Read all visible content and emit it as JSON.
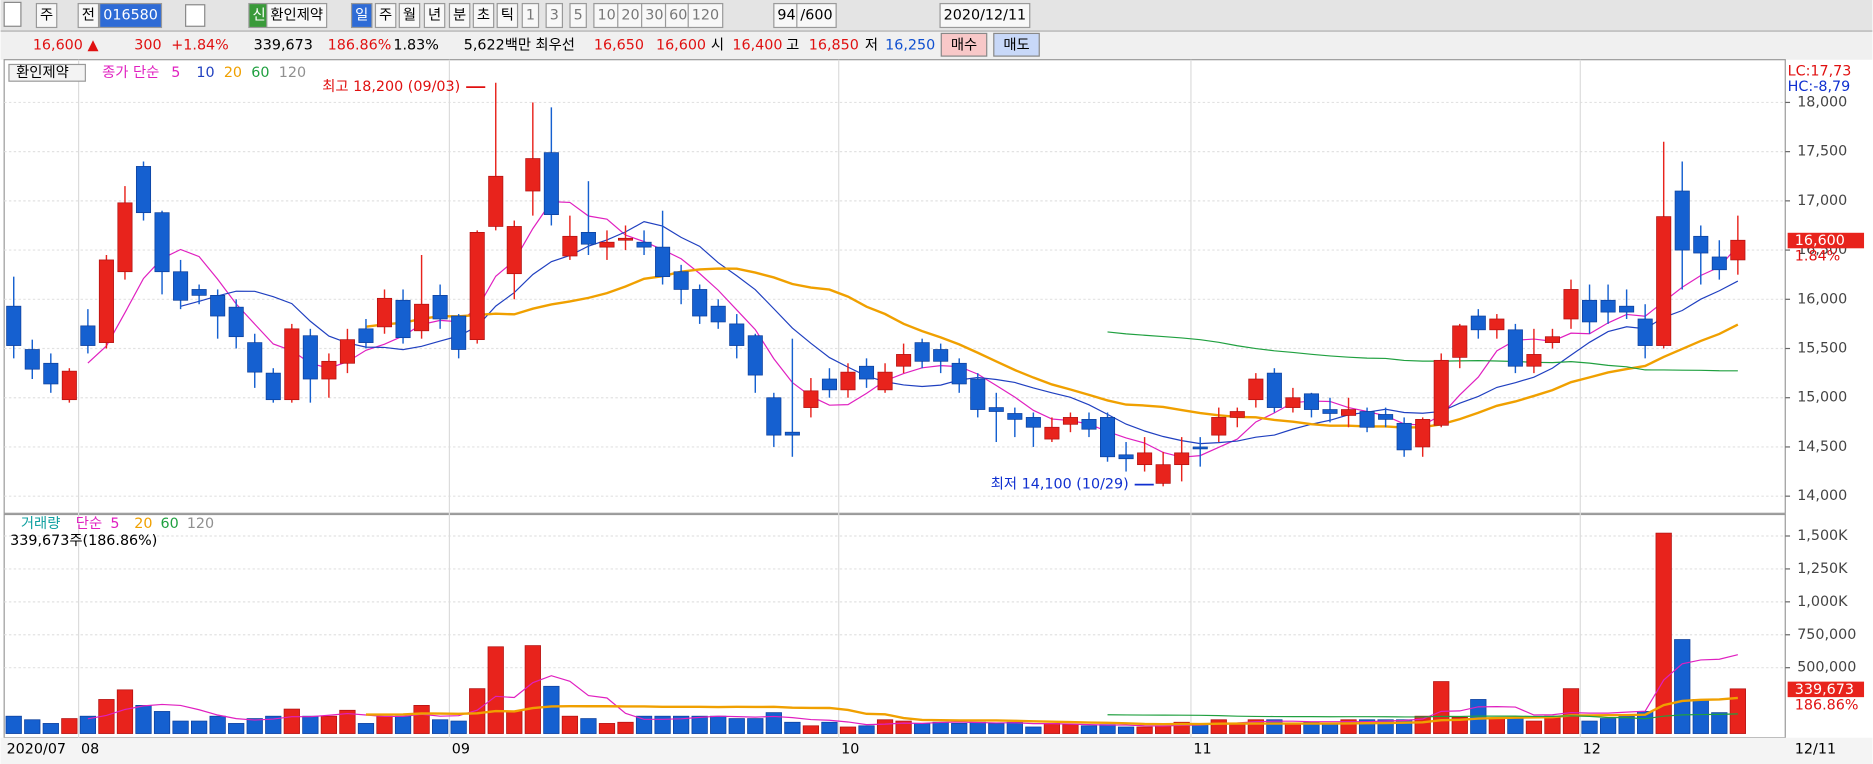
{
  "toolbar": [
    "주",
    "전",
    "016580",
    "신",
    "환인제약",
    "일",
    "주",
    "월",
    "년",
    "분",
    "초",
    "틱",
    "1",
    "3",
    "5",
    "10",
    "20",
    "30",
    "60",
    "120",
    "94",
    "/600",
    "2020/12/11"
  ],
  "quote": [
    {
      "text": "16,600 ▲",
      "color": "#e01010"
    },
    {
      "text": "300",
      "color": "#e01010"
    },
    {
      "text": "+1.84%",
      "color": "#e01010"
    },
    {
      "text": "339,673",
      "color": "#000000"
    },
    {
      "text": "186.86%",
      "color": "#e01010"
    },
    {
      "text": "1.83%",
      "color": "#000000"
    },
    {
      "text": "5,622백만",
      "color": "#000000"
    },
    {
      "text": "최우선",
      "color": "#000000"
    },
    {
      "text": "16,650",
      "color": "#e01010"
    },
    {
      "text": "16,600",
      "color": "#e01010"
    },
    {
      "text": "시",
      "color": "#000000"
    },
    {
      "text": "16,400",
      "color": "#e01010"
    },
    {
      "text": "고",
      "color": "#000000"
    },
    {
      "text": "16,850",
      "color": "#e01010"
    },
    {
      "text": "저",
      "color": "#000000"
    },
    {
      "text": "16,250",
      "color": "#1050d0"
    },
    {
      "text": "매수",
      "color": "#000000"
    },
    {
      "text": "매도",
      "color": "#000000"
    }
  ],
  "chart_data": {
    "type": "candlestick",
    "name": "환인제약",
    "ma_label": "종가 단순",
    "ma": [
      {
        "name": "5",
        "color": "#e020c0"
      },
      {
        "name": "10",
        "color": "#2040c0"
      },
      {
        "name": "20",
        "color": "#f0a000"
      },
      {
        "name": "60",
        "color": "#20a040"
      },
      {
        "name": "120",
        "color": "#909090"
      }
    ],
    "up_color": "#e8231c",
    "down_color": "#1560d0",
    "categories": [
      "2020/07",
      null,
      null,
      null,
      "08",
      null,
      null,
      null,
      null,
      null,
      null,
      null,
      null,
      null,
      null,
      null,
      null,
      null,
      null,
      null,
      null,
      null,
      null,
      null,
      "09",
      null,
      null,
      null,
      null,
      null,
      null,
      null,
      null,
      null,
      null,
      null,
      null,
      null,
      null,
      null,
      null,
      null,
      null,
      null,
      null,
      "10",
      null,
      null,
      null,
      null,
      null,
      null,
      null,
      null,
      null,
      null,
      null,
      null,
      null,
      null,
      null,
      null,
      null,
      null,
      "11",
      null,
      null,
      null,
      null,
      null,
      null,
      null,
      null,
      null,
      null,
      null,
      null,
      null,
      null,
      null,
      null,
      null,
      null,
      null,
      null,
      "12",
      null,
      null,
      null,
      null,
      null,
      null,
      null,
      "12/11"
    ],
    "open": [
      15930,
      15490,
      15350,
      14980,
      15730,
      15560,
      16280,
      17350,
      16880,
      16280,
      16100,
      16040,
      15920,
      15560,
      15250,
      14980,
      15630,
      15190,
      15350,
      15700,
      15720,
      15990,
      15680,
      16040,
      15830,
      15590,
      16740,
      16260,
      17100,
      17490,
      16440,
      16680,
      16530,
      16600,
      16580,
      16530,
      16280,
      16100,
      15930,
      15750,
      15630,
      15000,
      14650,
      14900,
      15190,
      15080,
      15320,
      15080,
      15320,
      15560,
      15490,
      15350,
      15190,
      14900,
      14840,
      14800,
      14580,
      14730,
      14780,
      14800,
      14420,
      14320,
      14130,
      14320,
      14500,
      14620,
      14800,
      14980,
      15250,
      14900,
      15040,
      14880,
      14820,
      14860,
      14830,
      14740,
      14500,
      14720,
      15410,
      15830,
      15690,
      15690,
      15320,
      15560,
      15800,
      15990,
      15990,
      15930,
      15800,
      15530,
      17100,
      16640,
      16430,
      16400
    ],
    "high": [
      16230,
      15590,
      15450,
      15300,
      15900,
      16450,
      17150,
      17400,
      16900,
      16400,
      16150,
      16100,
      16000,
      15650,
      15300,
      15750,
      15700,
      15450,
      15700,
      15800,
      16100,
      16100,
      16450,
      16150,
      15850,
      16700,
      18200,
      16800,
      18000,
      17950,
      16850,
      17200,
      16700,
      16750,
      16700,
      16900,
      16350,
      16150,
      16000,
      15850,
      15650,
      15050,
      15600,
      15200,
      15300,
      15350,
      15400,
      15350,
      15550,
      15600,
      15550,
      15400,
      15250,
      15050,
      14900,
      14850,
      14800,
      14850,
      14850,
      14850,
      14550,
      14600,
      14450,
      14600,
      14600,
      14900,
      14900,
      15250,
      15300,
      15100,
      15050,
      15000,
      15000,
      14900,
      14900,
      14800,
      14800,
      15450,
      15750,
      15900,
      15850,
      15750,
      15700,
      15700,
      16200,
      16150,
      16150,
      16100,
      15950,
      17600,
      17400,
      16750,
      16600,
      16850
    ],
    "low": [
      15400,
      15190,
      15050,
      14950,
      15450,
      15500,
      16200,
      16800,
      16050,
      15900,
      15950,
      15600,
      15500,
      15100,
      14950,
      14950,
      14950,
      15000,
      15250,
      15500,
      15650,
      15550,
      15600,
      15700,
      15400,
      15550,
      16700,
      16000,
      16850,
      16750,
      16400,
      16450,
      16400,
      16500,
      16450,
      16150,
      15950,
      15750,
      15700,
      15400,
      15050,
      14500,
      14400,
      14800,
      15000,
      15000,
      15100,
      15050,
      15250,
      15300,
      15250,
      15050,
      14800,
      14550,
      14600,
      14500,
      14550,
      14650,
      14600,
      14350,
      14250,
      14250,
      14100,
      14150,
      14300,
      14550,
      14700,
      14900,
      14850,
      14850,
      14800,
      14750,
      14700,
      14650,
      14700,
      14400,
      14400,
      14700,
      15300,
      15600,
      15600,
      15250,
      15250,
      15500,
      15700,
      15650,
      15750,
      15800,
      15400,
      15500,
      16100,
      16150,
      16200,
      16250
    ],
    "close": [
      15530,
      15290,
      15140,
      15270,
      15530,
      16400,
      16980,
      16880,
      16280,
      15990,
      16040,
      15830,
      15620,
      15260,
      14980,
      15700,
      15190,
      15370,
      15590,
      15560,
      16010,
      15610,
      15950,
      15800,
      15490,
      16680,
      17250,
      16740,
      17430,
      16860,
      16640,
      16560,
      16580,
      16620,
      16530,
      16230,
      16100,
      15830,
      15770,
      15530,
      15230,
      14620,
      14620,
      15070,
      15080,
      15260,
      15190,
      15260,
      15440,
      15370,
      15370,
      15140,
      14880,
      14860,
      14780,
      14700,
      14700,
      14800,
      14680,
      14400,
      14380,
      14440,
      14320,
      14440,
      14480,
      14800,
      14860,
      15190,
      14900,
      15000,
      14880,
      14840,
      14880,
      14700,
      14780,
      14470,
      14780,
      15380,
      15730,
      15690,
      15800,
      15320,
      15440,
      15620,
      16100,
      15770,
      15870,
      15870,
      15530,
      16840,
      16500,
      16470,
      16300,
      16600
    ],
    "ylim": [
      13850,
      18410
    ],
    "yticks": [
      {
        "value": 14000,
        "label": "14,000"
      },
      {
        "value": 14500,
        "label": "14,500"
      },
      {
        "value": 15000,
        "label": "15,000"
      },
      {
        "value": 15500,
        "label": "15,500"
      },
      {
        "value": 16000,
        "label": "16,000"
      },
      {
        "value": 16500,
        "label": "16,500"
      },
      {
        "value": 17000,
        "label": "17,000"
      },
      {
        "value": 17500,
        "label": "17,500"
      },
      {
        "value": 18000,
        "label": "18,000"
      }
    ],
    "high_note": "최고 18,200 (09/03)",
    "low_note": "최저 14,100 (10/29)",
    "right_notes": [
      "LC:17,73",
      "HC:-8,79"
    ],
    "last_price": "16,600",
    "last_change": "1.84%",
    "volume": [
      132000,
      105000,
      77000,
      114000,
      132000,
      259000,
      332000,
      214000,
      168000,
      95000,
      95000,
      132000,
      77000,
      114000,
      132000,
      186000,
      132000,
      132000,
      177000,
      77000,
      132000,
      132000,
      214000,
      105000,
      95000,
      341000,
      659000,
      168000,
      668000,
      359000,
      132000,
      114000,
      77000,
      86000,
      132000,
      132000,
      132000,
      132000,
      132000,
      114000,
      114000,
      159000,
      86000,
      59000,
      86000,
      50000,
      59000,
      105000,
      95000,
      77000,
      86000,
      77000,
      86000,
      77000,
      86000,
      50000,
      77000,
      68000,
      59000,
      68000,
      50000,
      50000,
      59000,
      86000,
      77000,
      105000,
      77000,
      105000,
      105000,
      77000,
      86000,
      77000,
      105000,
      105000,
      105000,
      105000,
      132000,
      395000,
      123000,
      259000,
      114000,
      114000,
      95000,
      132000,
      341000,
      95000,
      114000,
      132000,
      168000,
      1522000,
      714000,
      259000,
      159000,
      339673
    ],
    "volume_label": "거래량",
    "volume_ma_label": "단순",
    "volume_ma": [
      {
        "name": "5",
        "color": "#e020c0"
      },
      {
        "name": "20",
        "color": "#f0a000"
      },
      {
        "name": "60",
        "color": "#20a040"
      },
      {
        "name": "120",
        "color": "#909090"
      }
    ],
    "volume_info": "339,673주(186.86%)",
    "last_volume": "339,673",
    "last_volume_ratio": "186.86%",
    "y2lim": [
      0,
      1645000
    ],
    "y2ticks": [
      {
        "value": 500000,
        "label": "500,000"
      },
      {
        "value": 750000,
        "label": "750,000"
      },
      {
        "value": 1000000,
        "label": "1,000K"
      },
      {
        "value": 1250000,
        "label": "1,250K"
      },
      {
        "value": 1500000,
        "label": "1,500K"
      }
    ]
  }
}
